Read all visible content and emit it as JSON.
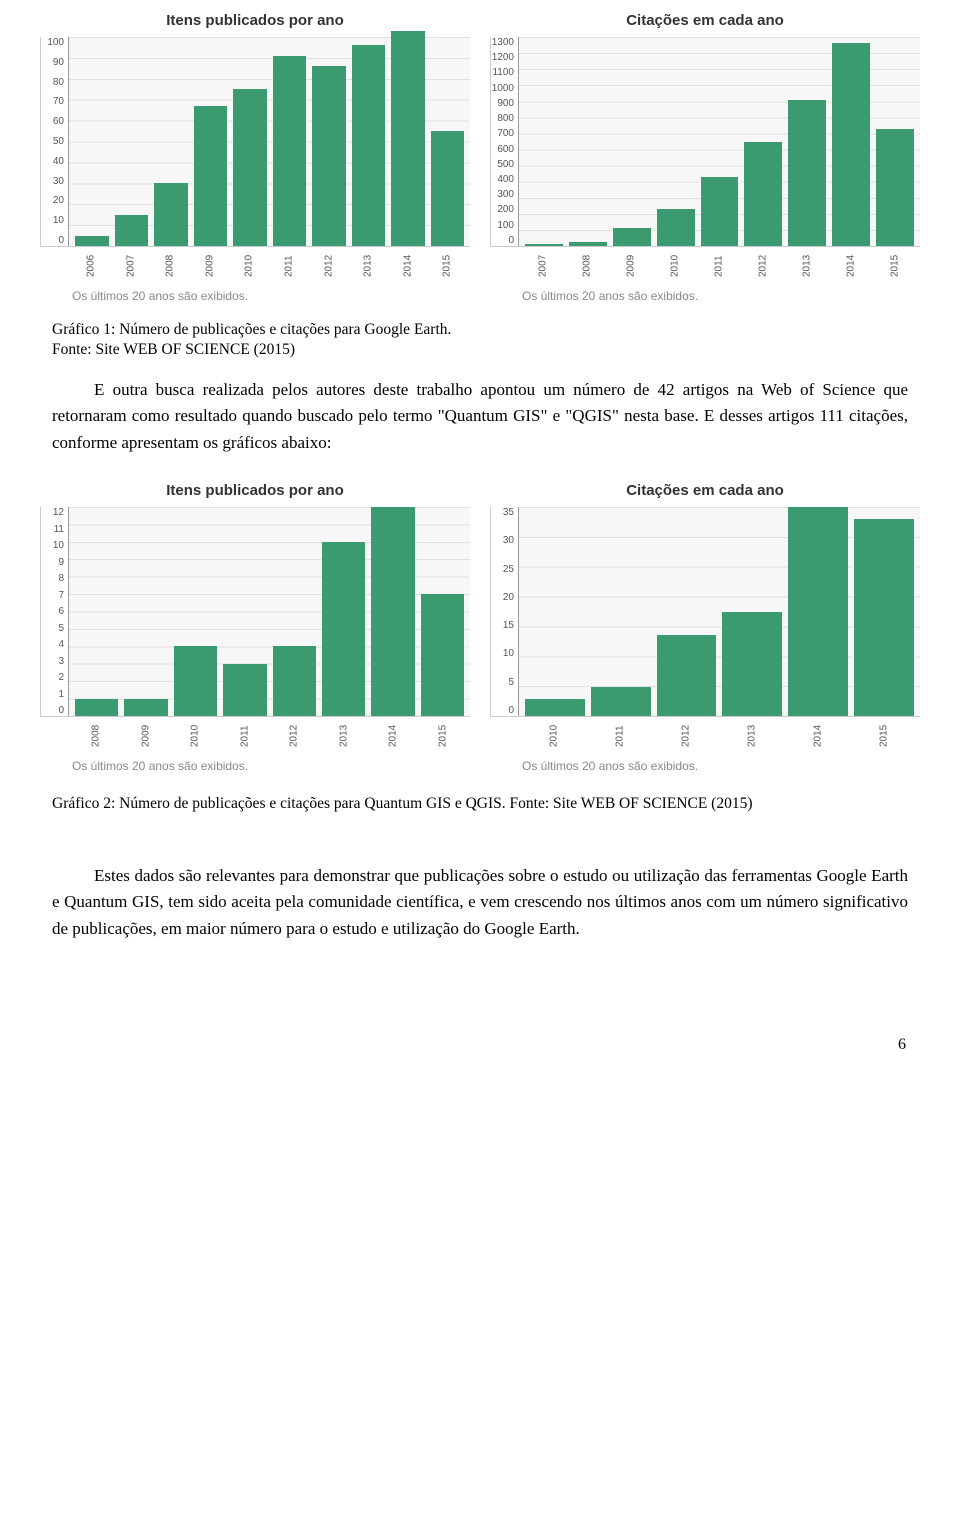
{
  "charts_row1": {
    "caption": "Os últimos 20 anos são exibidos.",
    "left": {
      "title": "Itens publicados por ano",
      "bar_color": "#3b9a6f",
      "grid_color": "#e0e0e0",
      "bg_color": "#f7f7f7",
      "ylim": [
        0,
        100
      ],
      "ytick_step": 10,
      "yticks": [
        "100",
        "90",
        "80",
        "70",
        "60",
        "50",
        "40",
        "30",
        "20",
        "10",
        "0"
      ],
      "categories": [
        "2006",
        "2007",
        "2008",
        "2009",
        "2010",
        "2011",
        "2012",
        "2013",
        "2014",
        "2015"
      ],
      "values": [
        5,
        15,
        30,
        67,
        75,
        91,
        86,
        96,
        103,
        55
      ]
    },
    "right": {
      "title": "Citações em cada ano",
      "bar_color": "#3b9a6f",
      "grid_color": "#e0e0e0",
      "bg_color": "#f7f7f7",
      "ylim": [
        0,
        1300
      ],
      "ytick_step": 100,
      "yticks": [
        "1300",
        "1200",
        "1100",
        "1000",
        "900",
        "800",
        "700",
        "600",
        "500",
        "400",
        "300",
        "200",
        "100",
        "0"
      ],
      "categories": [
        "2007",
        "2008",
        "2009",
        "2010",
        "2011",
        "2012",
        "2013",
        "2014",
        "2015"
      ],
      "values": [
        10,
        25,
        110,
        230,
        430,
        650,
        910,
        1260,
        730
      ]
    }
  },
  "fig1_caption": "Gráfico 1: Número de publicações e citações para Google Earth.",
  "fig1_source": "Fonte: Site WEB OF SCIENCE (2015)",
  "para1": "E outra busca realizada pelos autores deste trabalho apontou um número de 42 artigos na Web of Science que retornaram como resultado quando buscado pelo termo \"Quantum GIS\" e \"QGIS\" nesta base. E desses artigos 111 citações, conforme apresentam os gráficos abaixo:",
  "charts_row2": {
    "caption": "Os últimos 20 anos são exibidos.",
    "left": {
      "title": "Itens publicados por ano",
      "bar_color": "#3b9a6f",
      "grid_color": "#e0e0e0",
      "bg_color": "#f7f7f7",
      "ylim": [
        0,
        12
      ],
      "ytick_step": 1,
      "yticks": [
        "12",
        "11",
        "10",
        "9",
        "8",
        "7",
        "6",
        "5",
        "4",
        "3",
        "2",
        "1",
        "0"
      ],
      "categories": [
        "2008",
        "2009",
        "2010",
        "2011",
        "2012",
        "2013",
        "2014",
        "2015"
      ],
      "values": [
        1,
        1,
        4,
        3,
        4,
        10,
        12,
        7
      ]
    },
    "right": {
      "title": "Citações em cada ano",
      "bar_color": "#3b9a6f",
      "grid_color": "#e0e0e0",
      "bg_color": "#f7f7f7",
      "ylim": [
        0,
        36
      ],
      "ytick_step": 5,
      "yticks": [
        "35",
        "30",
        "25",
        "20",
        "15",
        "10",
        "5",
        "0"
      ],
      "categories": [
        "2010",
        "2011",
        "2012",
        "2013",
        "2014",
        "2015"
      ],
      "values": [
        3,
        5,
        14,
        18,
        36,
        34
      ]
    }
  },
  "fig2_caption": "Gráfico 2: Número de publicações e citações para Quantum GIS e QGIS. Fonte: Site WEB OF SCIENCE (2015)",
  "para2": "Estes dados são relevantes para demonstrar que publicações sobre o estudo ou utilização das ferramentas Google Earth e Quantum GIS, tem sido aceita pela comunidade científica, e vem crescendo nos últimos anos com um número significativo de publicações, em maior número para o estudo e utilização do Google Earth.",
  "page_number": "6"
}
